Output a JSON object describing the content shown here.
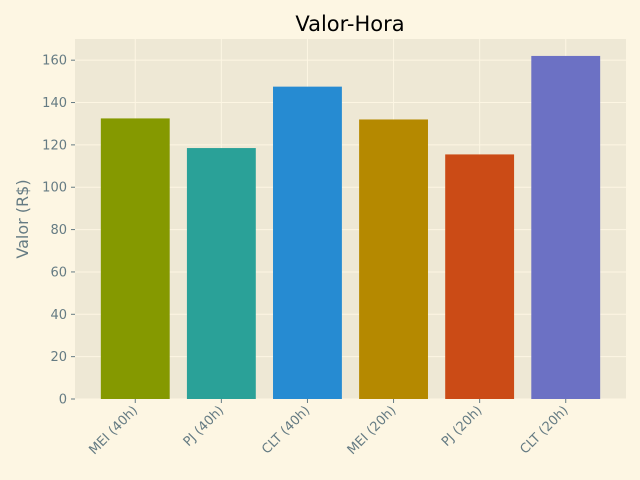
{
  "chart_data": {
    "type": "bar",
    "title": "Valor-Hora",
    "xlabel": "",
    "ylabel": "Valor (R$)",
    "categories": [
      "MEI (40h)",
      "PJ (40h)",
      "CLT (40h)",
      "MEI (20h)",
      "PJ (20h)",
      "CLT (20h)"
    ],
    "values": [
      132.5,
      118.5,
      147.5,
      132,
      115.5,
      162
    ],
    "colors": [
      "#859900",
      "#2aa198",
      "#268bd2",
      "#b58900",
      "#cb4b16",
      "#6c71c4"
    ],
    "ylim": [
      0,
      170
    ],
    "yticks": [
      0,
      20,
      40,
      60,
      80,
      100,
      120,
      140,
      160
    ],
    "grid": true,
    "legend": "none"
  },
  "colors": {
    "page_background": "#fdf6e3",
    "plot_background": "#eee8d5",
    "grid": "#fdf6e3",
    "text": "#657b83"
  }
}
